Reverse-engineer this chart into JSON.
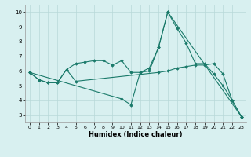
{
  "title": "",
  "xlabel": "Humidex (Indice chaleur)",
  "bg_color": "#d8f0f0",
  "line_color": "#1a7a6a",
  "grid_color": "#b8d8d8",
  "xlim": [
    -0.5,
    23.5
  ],
  "ylim": [
    2.5,
    10.5
  ],
  "xticks": [
    0,
    1,
    2,
    3,
    4,
    5,
    6,
    7,
    8,
    9,
    10,
    11,
    12,
    13,
    14,
    15,
    16,
    17,
    18,
    19,
    20,
    21,
    22,
    23
  ],
  "yticks": [
    3,
    4,
    5,
    6,
    7,
    8,
    9,
    10
  ],
  "lines": [
    {
      "x": [
        0,
        1,
        2,
        3,
        4,
        5,
        6,
        7,
        8,
        9,
        10,
        11,
        12,
        13,
        14,
        15,
        16,
        17,
        18,
        19,
        20,
        21,
        22,
        23
      ],
      "y": [
        5.9,
        5.4,
        5.2,
        5.2,
        6.1,
        6.5,
        6.6,
        6.7,
        6.7,
        6.4,
        6.7,
        5.9,
        5.9,
        6.0,
        7.6,
        10.0,
        8.9,
        7.9,
        6.5,
        6.5,
        5.8,
        5.0,
        4.0,
        2.9
      ]
    },
    {
      "x": [
        0,
        1,
        2,
        3,
        4,
        5,
        14,
        15,
        16,
        17,
        18,
        19,
        20,
        21,
        22,
        23
      ],
      "y": [
        5.9,
        5.4,
        5.2,
        5.2,
        6.1,
        5.3,
        5.9,
        6.0,
        6.2,
        6.3,
        6.4,
        6.4,
        6.5,
        5.8,
        4.0,
        2.9
      ]
    },
    {
      "x": [
        0,
        10,
        11,
        12,
        13,
        14,
        15,
        23
      ],
      "y": [
        5.9,
        4.1,
        3.7,
        5.9,
        6.2,
        7.6,
        10.0,
        2.9
      ]
    }
  ]
}
